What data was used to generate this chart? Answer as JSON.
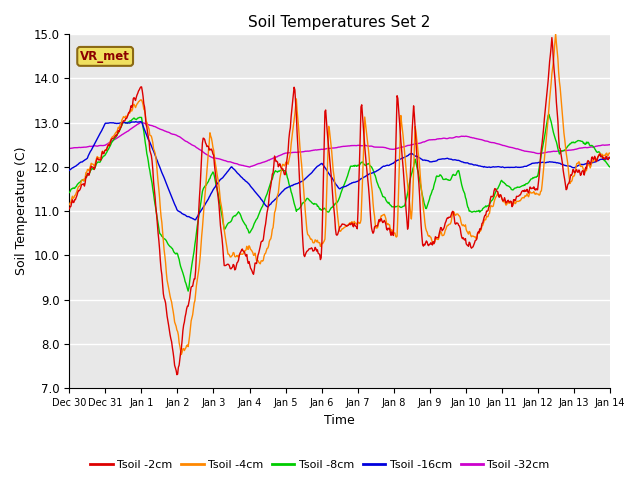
{
  "title": "Soil Temperatures Set 2",
  "xlabel": "Time",
  "ylabel": "Soil Temperature (C)",
  "ylim": [
    7.0,
    15.0
  ],
  "yticks": [
    7.0,
    8.0,
    9.0,
    10.0,
    11.0,
    12.0,
    13.0,
    14.0,
    15.0
  ],
  "xtick_labels": [
    "Dec 30",
    "Dec 31",
    "Jan 1",
    "Jan 2",
    "Jan 3",
    "Jan 4",
    "Jan 5",
    "Jan 6",
    "Jan 7",
    "Jan 8",
    "Jan 9",
    "Jan 10",
    "Jan 11",
    "Jan 12",
    "Jan 13",
    "Jan 14"
  ],
  "colors": {
    "2cm": "#dd0000",
    "4cm": "#ff8800",
    "8cm": "#00cc00",
    "16cm": "#0000dd",
    "32cm": "#cc00cc"
  },
  "legend_labels": [
    "Tsoil -2cm",
    "Tsoil -4cm",
    "Tsoil -8cm",
    "Tsoil -16cm",
    "Tsoil -32cm"
  ],
  "vr_met_label": "VR_met",
  "plot_bg": "#e8e8e8",
  "fig_bg": "#ffffff",
  "grid_color": "#ffffff",
  "linewidth": 1.0
}
